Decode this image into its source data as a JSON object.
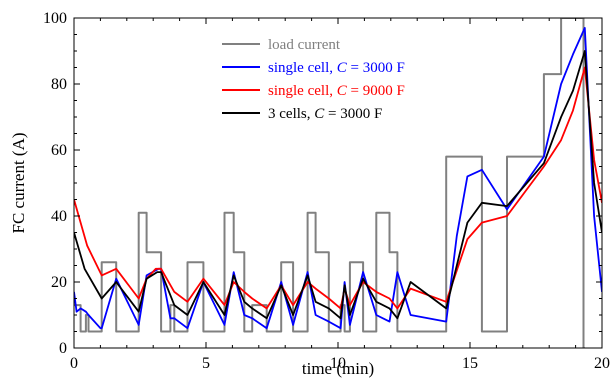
{
  "chart_data": {
    "type": "line",
    "xlabel": "time (min)",
    "ylabel": "FC current (A)",
    "xlim": [
      0,
      20
    ],
    "ylim": [
      0,
      100
    ],
    "xticks": [
      0,
      5,
      10,
      15,
      20
    ],
    "yticks": [
      0,
      20,
      40,
      60,
      80,
      100
    ],
    "grid": false,
    "legend_position": "top-center",
    "legend": [
      {
        "label": "load current",
        "label_main": "load current",
        "label_var": "",
        "label_tail": "",
        "color": "#808080"
      },
      {
        "label": "single cell, C = 3000 F",
        "label_main": "single cell, ",
        "label_var": "C",
        "label_tail": " = 3000 F",
        "color": "#0000ff"
      },
      {
        "label": "single cell, C = 9000 F",
        "label_main": "single cell, ",
        "label_var": "C",
        "label_tail": " = 9000 F",
        "color": "#ff0000"
      },
      {
        "label": "3 cells, C = 3000 F",
        "label_main": "3 cells, ",
        "label_var": "C",
        "label_tail": " = 3000 F",
        "color": "#000000"
      }
    ],
    "series": [
      {
        "name": "load current",
        "color": "#808080",
        "step": true,
        "x": [
          0,
          0.25,
          0.45,
          0.55,
          1.05,
          1.6,
          2.45,
          2.75,
          3.3,
          3.65,
          3.8,
          4.3,
          4.9,
          5.7,
          6.05,
          6.45,
          6.75,
          7.3,
          7.85,
          8.3,
          8.85,
          9.15,
          9.65,
          10.1,
          10.25,
          10.45,
          10.95,
          11.45,
          11.95,
          12.25,
          12.75,
          14.1,
          14.9,
          15.45,
          16.4,
          17.8,
          18.45,
          18.65,
          19.3,
          19.35
        ],
        "y": [
          13,
          5,
          10,
          5,
          26,
          5,
          41,
          29,
          5,
          13,
          5,
          26,
          5,
          41,
          29,
          5,
          13,
          5,
          26,
          5,
          41,
          29,
          5,
          13,
          5,
          26,
          5,
          41,
          29,
          5,
          5,
          58,
          58,
          5,
          58,
          83,
          100,
          100,
          0,
          0
        ]
      },
      {
        "name": "single cell, C = 3000 F",
        "color": "#0000ff",
        "x": [
          0,
          0.1,
          0.25,
          0.45,
          0.55,
          1.0,
          1.05,
          1.6,
          2.45,
          2.75,
          3.2,
          3.3,
          3.65,
          3.8,
          4.3,
          4.9,
          5.7,
          6.05,
          6.45,
          6.75,
          7.3,
          7.85,
          8.3,
          8.85,
          9.15,
          9.65,
          10.1,
          10.25,
          10.45,
          10.95,
          11.45,
          11.95,
          12.25,
          12.75,
          14.1,
          14.5,
          14.9,
          15.45,
          16.4,
          17.8,
          18.45,
          18.9,
          19.35,
          19.7,
          20.0
        ],
        "y": [
          17,
          11,
          12,
          11,
          10,
          6,
          6,
          21,
          7,
          22,
          24,
          24,
          9,
          9,
          6,
          20,
          7,
          23,
          10,
          9,
          6,
          20,
          7,
          23,
          10,
          8,
          6,
          20,
          7,
          23,
          10,
          8,
          23,
          10,
          8,
          34,
          52,
          54,
          42,
          58,
          80,
          89,
          97,
          40,
          17
        ]
      },
      {
        "name": "single cell, C = 9000 F",
        "color": "#ff0000",
        "x": [
          0,
          0.5,
          1.05,
          1.6,
          2.45,
          2.75,
          3.1,
          3.3,
          3.8,
          4.3,
          4.9,
          5.7,
          6.05,
          6.45,
          6.75,
          7.3,
          7.85,
          8.3,
          8.85,
          9.15,
          9.65,
          10.1,
          10.25,
          10.45,
          10.95,
          11.45,
          11.95,
          12.25,
          12.75,
          14.1,
          14.9,
          15.45,
          16.4,
          17.8,
          18.45,
          18.9,
          19.35,
          19.7,
          20.0
        ],
        "y": [
          45,
          31,
          22,
          24,
          15,
          21,
          24,
          24,
          17,
          14,
          21,
          13,
          20,
          17,
          15,
          12,
          19,
          13,
          20,
          18,
          15,
          12,
          18,
          13,
          20,
          17,
          15,
          12,
          18,
          14,
          33,
          38,
          40,
          55,
          63,
          72,
          85,
          57,
          44
        ]
      },
      {
        "name": "3 cells, C = 3000 F",
        "color": "#000000",
        "x": [
          0,
          0.4,
          1.05,
          1.6,
          2.45,
          2.75,
          3.15,
          3.3,
          3.8,
          4.3,
          4.9,
          5.7,
          6.05,
          6.45,
          6.75,
          7.3,
          7.85,
          8.3,
          8.85,
          9.15,
          9.65,
          10.1,
          10.25,
          10.45,
          10.95,
          11.45,
          11.95,
          12.25,
          12.75,
          14.1,
          14.9,
          15.45,
          16.4,
          17.8,
          18.45,
          18.9,
          19.35,
          19.7,
          20.0
        ],
        "y": [
          35,
          24,
          15,
          20,
          11,
          21,
          23,
          23,
          13,
          10,
          20,
          10,
          22,
          14,
          12,
          9,
          19,
          10,
          22,
          14,
          12,
          9,
          19,
          10,
          21,
          14,
          12,
          9,
          20,
          12,
          38,
          44,
          43,
          56,
          70,
          78,
          90,
          50,
          35
        ]
      }
    ]
  }
}
